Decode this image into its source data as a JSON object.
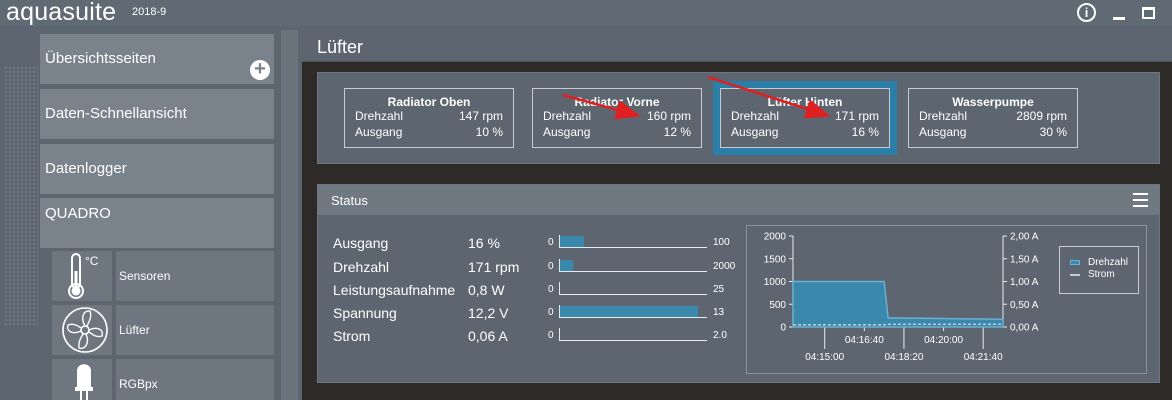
{
  "app": {
    "name": "aquasuite",
    "version": "2018-9"
  },
  "window": {
    "info": "i"
  },
  "sidebar": {
    "nav": [
      {
        "label": "Übersichtsseiten"
      },
      {
        "label": "Daten-Schnellansicht"
      },
      {
        "label": "Datenlogger"
      },
      {
        "label": "QUADRO"
      }
    ],
    "plus": "+",
    "subitems": [
      {
        "label": "Sensoren",
        "icon": "thermometer-icon",
        "unit": "°C"
      },
      {
        "label": "Lüfter",
        "icon": "fan-icon"
      },
      {
        "label": "RGBpx",
        "icon": "led-icon"
      }
    ]
  },
  "main": {
    "title": "Lüfter",
    "cards": [
      {
        "title": "Radiator Oben",
        "rows": [
          {
            "k": "Drehzahl",
            "v": "147 rpm"
          },
          {
            "k": "Ausgang",
            "v": "10 %"
          }
        ]
      },
      {
        "title": "Radiator Vorne",
        "rows": [
          {
            "k": "Drehzahl",
            "v": "160 rpm"
          },
          {
            "k": "Ausgang",
            "v": "12 %"
          }
        ]
      },
      {
        "title": "Lüfter Hinten",
        "rows": [
          {
            "k": "Drehzahl",
            "v": "171 rpm"
          },
          {
            "k": "Ausgang",
            "v": "16 %"
          }
        ]
      },
      {
        "title": "Wasserpumpe",
        "rows": [
          {
            "k": "Drehzahl",
            "v": "2809 rpm"
          },
          {
            "k": "Ausgang",
            "v": "30 %"
          }
        ]
      }
    ],
    "status": {
      "title": "Status",
      "metrics": [
        {
          "label": "Ausgang",
          "value": "16 %",
          "min": "0",
          "max": "100",
          "fill": 0.16
        },
        {
          "label": "Drehzahl",
          "value": "171 rpm",
          "min": "0",
          "max": "2000",
          "fill": 0.0855
        },
        {
          "label": "Leistungsaufnahme",
          "value": "0,8 W",
          "min": "0",
          "max": "25",
          "fill": 0
        },
        {
          "label": "Spannung",
          "value": "12,2 V",
          "min": "0",
          "max": "13",
          "fill": 0.94
        },
        {
          "label": "Strom",
          "value": "0,06 A",
          "min": "0",
          "max": "2.0",
          "fill": 0
        }
      ]
    }
  },
  "colors": {
    "accent": "#3b88ad",
    "selected": "#2a7ea8",
    "arrow": "#e02020"
  },
  "chart_data": {
    "type": "area",
    "y_left": {
      "ticks": [
        "2000",
        "1500",
        "1000",
        "500",
        "0"
      ],
      "range": [
        0,
        2000
      ]
    },
    "y_right": {
      "ticks": [
        "2,00 A",
        "1,50 A",
        "1,00 A",
        "0,50 A",
        "0,00 A"
      ],
      "range": [
        0,
        2
      ]
    },
    "x_ticks_upper": [
      "04:16:40",
      "04:20:00"
    ],
    "x_ticks_lower": [
      "04:15:00",
      "04:18:20",
      "04:21:40"
    ],
    "series": [
      {
        "name": "Drehzahl",
        "type": "area",
        "x": [
          "04:13:40",
          "04:17:30",
          "04:17:40",
          "04:22:30"
        ],
        "y": [
          1000,
          1000,
          200,
          171
        ]
      },
      {
        "name": "Strom",
        "type": "line",
        "x": [
          "04:13:40",
          "04:17:30",
          "04:17:40",
          "04:22:30"
        ],
        "y": [
          0.05,
          0.05,
          0.06,
          0.06
        ]
      }
    ],
    "legend": "right"
  }
}
